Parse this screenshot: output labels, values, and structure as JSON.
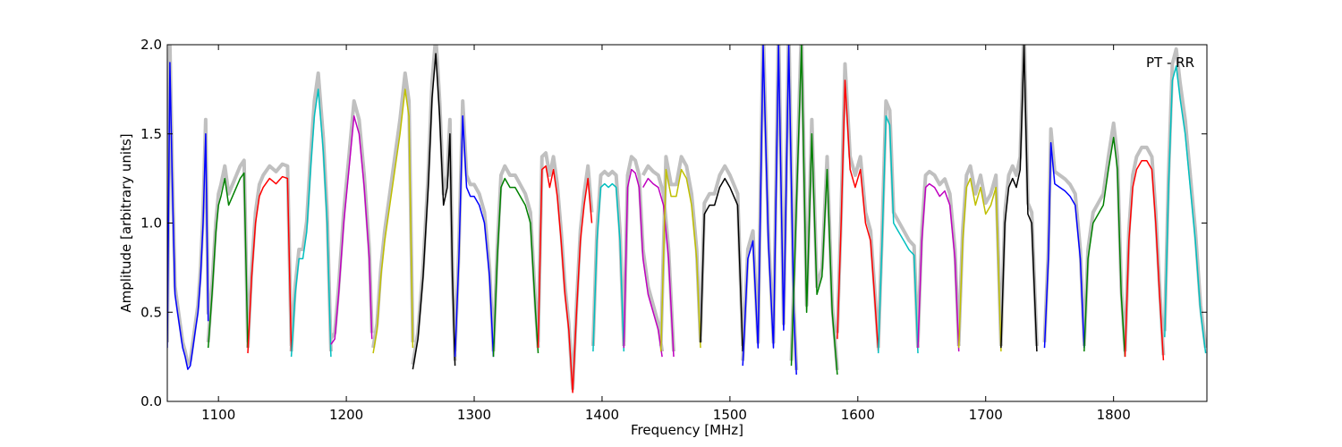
{
  "chart_data": {
    "type": "line",
    "title": "",
    "xlabel": "Frequency [MHz]",
    "ylabel": "Amplitude [arbitrary units]",
    "xlim": [
      1060,
      1873
    ],
    "ylim": [
      0.0,
      2.0
    ],
    "xticks": [
      {
        "v": 1100,
        "label": "1100"
      },
      {
        "v": 1200,
        "label": "1200"
      },
      {
        "v": 1300,
        "label": "1300"
      },
      {
        "v": 1400,
        "label": "1400"
      },
      {
        "v": 1500,
        "label": "1500"
      },
      {
        "v": 1600,
        "label": "1600"
      },
      {
        "v": 1700,
        "label": "1700"
      },
      {
        "v": 1800,
        "label": "1800"
      }
    ],
    "yticks": [
      {
        "v": 0.0,
        "label": "0.0"
      },
      {
        "v": 0.5,
        "label": "0.5"
      },
      {
        "v": 1.0,
        "label": "1.0"
      },
      {
        "v": 1.5,
        "label": "1.5"
      },
      {
        "v": 2.0,
        "label": "2.0"
      }
    ],
    "grid": false,
    "annotation": {
      "text": "PT - RR",
      "placement": "top-right"
    },
    "background_color": "#c0c0c0",
    "series": [
      {
        "color": "#0000ff",
        "x": [
          1060,
          1062,
          1064,
          1066,
          1068,
          1070,
          1072,
          1074,
          1076,
          1078,
          1080,
          1082,
          1084,
          1086,
          1088,
          1090,
          1092
        ],
        "y": [
          0.3,
          1.9,
          1.2,
          0.6,
          0.5,
          0.4,
          0.3,
          0.25,
          0.18,
          0.2,
          0.3,
          0.4,
          0.5,
          0.7,
          1.0,
          1.5,
          0.45
        ]
      },
      {
        "color": "#008000",
        "x": [
          1092,
          1095,
          1098,
          1100,
          1102,
          1105,
          1108,
          1111,
          1114,
          1117,
          1120,
          1123
        ],
        "y": [
          0.3,
          0.6,
          0.95,
          1.1,
          1.15,
          1.25,
          1.1,
          1.15,
          1.2,
          1.25,
          1.28,
          0.3
        ]
      },
      {
        "color": "#ff0000",
        "x": [
          1123,
          1126,
          1129,
          1132,
          1135,
          1140,
          1145,
          1150,
          1154,
          1157
        ],
        "y": [
          0.27,
          0.7,
          1.0,
          1.15,
          1.2,
          1.25,
          1.22,
          1.26,
          1.25,
          0.28
        ]
      },
      {
        "color": "#00bfbf",
        "x": [
          1157,
          1160,
          1163,
          1166,
          1169,
          1172,
          1175,
          1178,
          1182,
          1185,
          1188
        ],
        "y": [
          0.25,
          0.6,
          0.8,
          0.8,
          0.95,
          1.3,
          1.6,
          1.75,
          1.4,
          1.0,
          0.25
        ]
      },
      {
        "color": "#bf00bf",
        "x": [
          1188,
          1191,
          1194,
          1198,
          1202,
          1206,
          1210,
          1214,
          1218,
          1220
        ],
        "y": [
          0.32,
          0.35,
          0.6,
          1.0,
          1.3,
          1.6,
          1.5,
          1.2,
          0.8,
          0.35
        ]
      },
      {
        "color": "#bfbf00",
        "x": [
          1221,
          1224,
          1227,
          1230,
          1234,
          1238,
          1242,
          1246,
          1249,
          1252
        ],
        "y": [
          0.27,
          0.4,
          0.7,
          0.9,
          1.1,
          1.3,
          1.5,
          1.75,
          1.6,
          0.3
        ]
      },
      {
        "color": "#000000",
        "x": [
          1252,
          1256,
          1260,
          1264,
          1267,
          1270,
          1273,
          1276,
          1279,
          1281,
          1283,
          1285
        ],
        "y": [
          0.18,
          0.35,
          0.7,
          1.2,
          1.7,
          1.95,
          1.6,
          1.1,
          1.2,
          1.5,
          0.7,
          0.2
        ]
      },
      {
        "color": "#0000ff",
        "x": [
          1285,
          1288,
          1291,
          1294,
          1297,
          1300,
          1304,
          1308,
          1312,
          1315
        ],
        "y": [
          0.25,
          0.8,
          1.6,
          1.2,
          1.15,
          1.15,
          1.1,
          1.0,
          0.7,
          0.25
        ]
      },
      {
        "color": "#008000",
        "x": [
          1315,
          1318,
          1321,
          1324,
          1328,
          1332,
          1336,
          1340,
          1344,
          1348,
          1350
        ],
        "y": [
          0.25,
          0.8,
          1.2,
          1.25,
          1.2,
          1.2,
          1.15,
          1.1,
          1.0,
          0.5,
          0.27
        ]
      },
      {
        "color": "#ff0000",
        "x": [
          1350,
          1353,
          1356,
          1359,
          1362,
          1365,
          1368,
          1371,
          1374,
          1377,
          1380,
          1383,
          1386,
          1389,
          1392
        ],
        "y": [
          0.3,
          1.3,
          1.32,
          1.2,
          1.3,
          1.15,
          0.9,
          0.6,
          0.4,
          0.05,
          0.5,
          0.9,
          1.1,
          1.25,
          1.0
        ]
      },
      {
        "color": "#00bfbf",
        "x": [
          1393,
          1396,
          1399,
          1402,
          1405,
          1408,
          1411,
          1414,
          1417
        ],
        "y": [
          0.28,
          0.9,
          1.2,
          1.22,
          1.2,
          1.22,
          1.2,
          0.9,
          0.28
        ]
      },
      {
        "color": "#bf00bf",
        "x": [
          1417,
          1420,
          1423,
          1426,
          1429,
          1432,
          1436,
          1440,
          1444,
          1447
        ],
        "y": [
          0.3,
          1.2,
          1.3,
          1.28,
          1.2,
          0.8,
          0.6,
          0.5,
          0.4,
          0.25
        ]
      },
      {
        "color": "#bf00bf",
        "x": [
          1432,
          1436,
          1440,
          1444,
          1448,
          1452,
          1456
        ],
        "y": [
          1.2,
          1.25,
          1.22,
          1.2,
          1.1,
          0.8,
          0.25
        ]
      },
      {
        "color": "#bfbf00",
        "x": [
          1446,
          1450,
          1454,
          1458,
          1462,
          1466,
          1470,
          1474,
          1477
        ],
        "y": [
          0.28,
          1.3,
          1.15,
          1.15,
          1.3,
          1.25,
          1.1,
          0.8,
          0.3
        ]
      },
      {
        "color": "#000000",
        "x": [
          1477,
          1480,
          1484,
          1488,
          1492,
          1496,
          1500,
          1503,
          1506,
          1510
        ],
        "y": [
          0.33,
          1.05,
          1.1,
          1.1,
          1.2,
          1.25,
          1.2,
          1.15,
          1.1,
          0.28
        ]
      },
      {
        "color": "#0000ff",
        "x": [
          1510,
          1514,
          1518,
          1522,
          1526,
          1530,
          1534,
          1538,
          1542,
          1546,
          1550,
          1552
        ],
        "y": [
          0.2,
          0.8,
          0.9,
          0.3,
          2.0,
          0.9,
          0.3,
          2.0,
          0.4,
          2.0,
          0.5,
          0.15
        ]
      },
      {
        "color": "#008000",
        "x": [
          1548,
          1552,
          1556,
          1560,
          1564,
          1568,
          1572,
          1576,
          1580,
          1584
        ],
        "y": [
          0.2,
          1.1,
          2.0,
          0.5,
          1.5,
          0.6,
          0.7,
          1.3,
          0.5,
          0.15
        ]
      },
      {
        "color": "#ff0000",
        "x": [
          1584,
          1587,
          1590,
          1594,
          1598,
          1602,
          1606,
          1610,
          1613,
          1616
        ],
        "y": [
          0.35,
          1.0,
          1.8,
          1.3,
          1.2,
          1.3,
          1.0,
          0.9,
          0.6,
          0.28
        ]
      },
      {
        "color": "#00bfbf",
        "x": [
          1616,
          1619,
          1622,
          1625,
          1628,
          1632,
          1636,
          1640,
          1644,
          1647
        ],
        "y": [
          0.27,
          0.9,
          1.6,
          1.55,
          1.0,
          0.95,
          0.9,
          0.85,
          0.82,
          0.27
        ]
      },
      {
        "color": "#bf00bf",
        "x": [
          1647,
          1650,
          1653,
          1656,
          1660,
          1664,
          1668,
          1672,
          1676,
          1679
        ],
        "y": [
          0.3,
          0.9,
          1.2,
          1.22,
          1.2,
          1.15,
          1.18,
          1.1,
          0.8,
          0.28
        ]
      },
      {
        "color": "#bfbf00",
        "x": [
          1679,
          1682,
          1685,
          1688,
          1692,
          1696,
          1700,
          1704,
          1708,
          1712
        ],
        "y": [
          0.3,
          0.9,
          1.2,
          1.25,
          1.1,
          1.2,
          1.05,
          1.1,
          1.2,
          0.28
        ]
      },
      {
        "color": "#000000",
        "x": [
          1712,
          1715,
          1718,
          1721,
          1724,
          1727,
          1730,
          1733,
          1736,
          1740
        ],
        "y": [
          0.3,
          1.0,
          1.2,
          1.25,
          1.2,
          1.3,
          2.0,
          1.05,
          1.0,
          0.28
        ]
      },
      {
        "color": "#0000ff",
        "x": [
          1746,
          1749,
          1751,
          1754,
          1758,
          1762,
          1766,
          1770,
          1774,
          1777
        ],
        "y": [
          0.3,
          0.8,
          1.45,
          1.22,
          1.2,
          1.18,
          1.15,
          1.1,
          0.8,
          0.3
        ]
      },
      {
        "color": "#008000",
        "x": [
          1777,
          1780,
          1784,
          1788,
          1792,
          1796,
          1800,
          1803,
          1806,
          1809
        ],
        "y": [
          0.28,
          0.8,
          1.0,
          1.05,
          1.1,
          1.3,
          1.48,
          1.3,
          0.6,
          0.25
        ]
      },
      {
        "color": "#ff0000",
        "x": [
          1809,
          1812,
          1815,
          1818,
          1822,
          1826,
          1830,
          1833,
          1836,
          1839
        ],
        "y": [
          0.25,
          0.9,
          1.2,
          1.3,
          1.35,
          1.35,
          1.3,
          1.0,
          0.6,
          0.23
        ]
      },
      {
        "color": "#00bfbf",
        "x": [
          1840,
          1843,
          1846,
          1849,
          1852,
          1856,
          1860,
          1864,
          1868,
          1872
        ],
        "y": [
          0.36,
          1.2,
          1.8,
          1.88,
          1.7,
          1.5,
          1.2,
          0.9,
          0.5,
          0.27
        ]
      }
    ]
  }
}
